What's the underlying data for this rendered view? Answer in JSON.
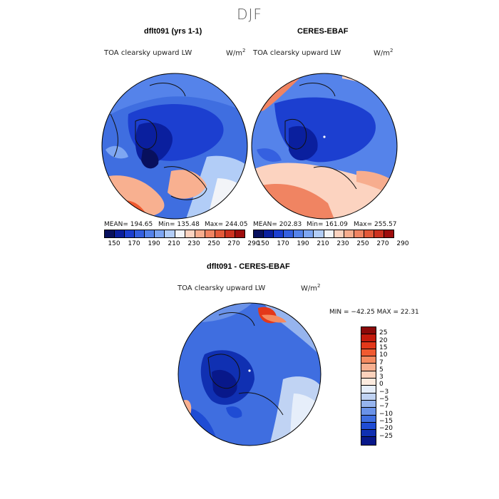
{
  "season": "DJF",
  "panels": [
    {
      "title": "dflt091 (yrs 1-1)",
      "variable": "TOA clearsky upward LW",
      "units": "W/m",
      "units_exp": "2",
      "stats": {
        "mean": "MEAN= 194.65",
        "min": "Min= 135.48",
        "max": "Max= 244.05"
      }
    },
    {
      "title": "CERES-EBAF",
      "variable": "TOA clearsky upward LW",
      "units": "W/m",
      "units_exp": "2",
      "stats": {
        "mean": "MEAN= 202.83",
        "min": "Min= 161.09",
        "max": "Max= 255.57"
      }
    },
    {
      "title": "dflt091 - CERES-EBAF",
      "variable": "TOA clearsky upward LW",
      "units": "W/m",
      "units_exp": "2",
      "stats": {
        "minmax": "MIN = −42.25 MAX =  22.31"
      }
    }
  ],
  "colorbar_abs": {
    "ticks": [
      "150",
      "170",
      "190",
      "210",
      "230",
      "250",
      "270",
      "290"
    ],
    "colors": [
      "#08105e",
      "#0a1f9e",
      "#1c3fd0",
      "#3560e0",
      "#5583ea",
      "#7ea6f2",
      "#b2cdf7",
      "#f2f4f8",
      "#fcd3c0",
      "#f7ad8e",
      "#f08462",
      "#e35a3a",
      "#cc3220",
      "#9e0d0d"
    ]
  },
  "colorbar_diff": {
    "ticks": [
      "25",
      "20",
      "15",
      "10",
      "7",
      "5",
      "3",
      "0",
      "−3",
      "−5",
      "−7",
      "−10",
      "−15",
      "−20",
      "−25"
    ],
    "colors": [
      "#8c0a0a",
      "#c41b0d",
      "#e3381a",
      "#f05a30",
      "#f58a60",
      "#f8b090",
      "#fbd2bc",
      "#fcebdf",
      "#e6eefa",
      "#c0d3f3",
      "#96b4ee",
      "#6a92e8",
      "#3f6ee0",
      "#1f4cd4",
      "#1030b2",
      "#08188a"
    ]
  },
  "colors": {
    "deep_blue": "#0a1f9e",
    "mid_blue": "#2d55dc",
    "light_blue": "#9cbcf2",
    "pale": "#eef2f8",
    "light_red": "#f8b090",
    "red": "#e0502c"
  }
}
